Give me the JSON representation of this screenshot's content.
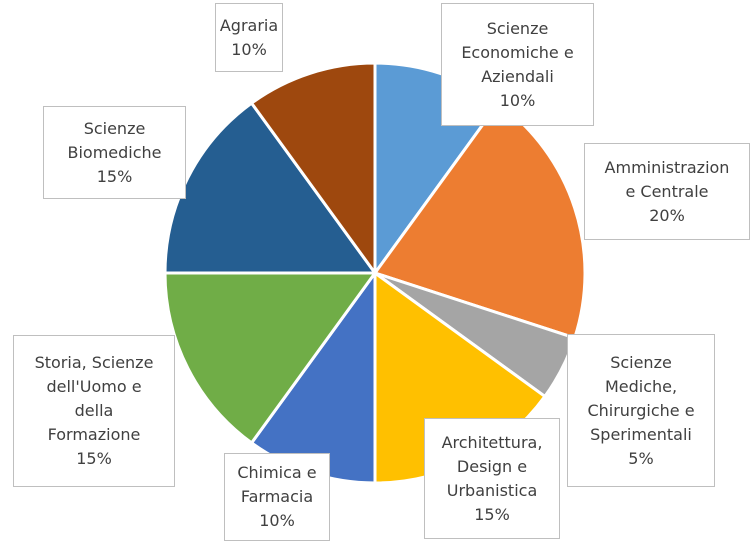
{
  "chart_data": {
    "type": "pie",
    "categories": [
      "Scienze\nEconomiche e\nAziendali",
      "Amministrazion\ne Centrale",
      "Scienze\nMediche,\nChirurgiche e\nSperimentali",
      "Architettura,\nDesign e\nUrbanistica",
      "Chimica e\nFarmacia",
      "Storia, Scienze\ndell'Uomo e\ndella\nFormazione",
      "Scienze\nBiomediche",
      "Agraria"
    ],
    "values": [
      10,
      20,
      5,
      15,
      10,
      15,
      15,
      10
    ],
    "value_labels": [
      "10%",
      "20%",
      "5%",
      "15%",
      "10%",
      "15%",
      "15%",
      "10%"
    ],
    "colors": [
      "#5b9bd5",
      "#ed7d31",
      "#a5a5a5",
      "#ffc000",
      "#4472c4",
      "#70ad47",
      "#255e91",
      "#9e480e"
    ]
  }
}
